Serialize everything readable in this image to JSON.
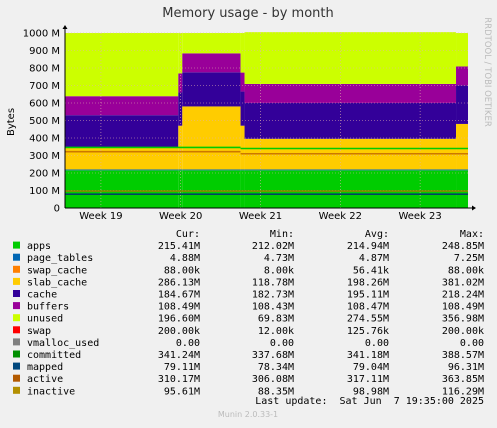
{
  "chart_data": {
    "type": "area",
    "title": "Memory usage - by month",
    "ylabel": "Bytes",
    "xlabel": "",
    "side_label": "RRDTOOL / TOBI OETIKER",
    "ylim": [
      0,
      1000000000
    ],
    "y_ticks": [
      {
        "label": "0",
        "value": 0
      },
      {
        "label": "100 M",
        "value": 100000000
      },
      {
        "label": "200 M",
        "value": 200000000
      },
      {
        "label": "300 M",
        "value": 300000000
      },
      {
        "label": "400 M",
        "value": 400000000
      },
      {
        "label": "500 M",
        "value": 500000000
      },
      {
        "label": "600 M",
        "value": 600000000
      },
      {
        "label": "700 M",
        "value": 700000000
      },
      {
        "label": "800 M",
        "value": 800000000
      },
      {
        "label": "900 M",
        "value": 900000000
      },
      {
        "label": "1000 M",
        "value": 1000000000
      }
    ],
    "x_ticks": [
      "Week 19",
      "Week 20",
      "Week 21",
      "Week 22",
      "Week 23"
    ],
    "x_range_weeks": [
      18.55,
      23.6
    ],
    "segments": [
      {
        "start": 18.55,
        "end": 19.97,
        "apps": 215.4,
        "page_tables": 4.9,
        "swap_cache": 0.05,
        "slab_cache": 125,
        "cache": 185,
        "buffers": 108.5,
        "unused": 361
      },
      {
        "start": 19.97,
        "end": 20.02,
        "apps": 215.4,
        "page_tables": 4.9,
        "swap_cache": 0.05,
        "slab_cache": 250,
        "cache": 190,
        "buffers": 108.5,
        "unused": 231
      },
      {
        "start": 20.02,
        "end": 20.75,
        "apps": 215.4,
        "page_tables": 4.9,
        "swap_cache": 0.05,
        "slab_cache": 360,
        "cache": 195,
        "buffers": 108.5,
        "unused": 116
      },
      {
        "start": 20.75,
        "end": 20.8,
        "apps": 215.4,
        "page_tables": 4.9,
        "swap_cache": 0.05,
        "slab_cache": 250,
        "cache": 195,
        "buffers": 108.5,
        "unused": 226
      },
      {
        "start": 20.8,
        "end": 23.45,
        "apps": 215.4,
        "page_tables": 4.9,
        "swap_cache": 0.05,
        "slab_cache": 175,
        "cache": 205,
        "buffers": 108.5,
        "unused": 296
      },
      {
        "start": 23.45,
        "end": 23.6,
        "apps": 215.4,
        "page_tables": 4.9,
        "swap_cache": 0.05,
        "slab_cache": 260,
        "cache": 220,
        "buffers": 108.5,
        "unused": 191
      }
    ],
    "lines": [
      {
        "name": "committed",
        "color": "#00CC00",
        "segments": [
          [
            18.55,
            20.75,
            346
          ],
          [
            20.75,
            23.6,
            340
          ]
        ]
      },
      {
        "name": "active",
        "color": "#CC7700",
        "segments": [
          [
            18.55,
            20.75,
            322
          ],
          [
            20.75,
            23.6,
            310
          ]
        ]
      },
      {
        "name": "mapped",
        "color": "#004466",
        "segments": [
          [
            18.55,
            23.6,
            79
          ]
        ]
      },
      {
        "name": "inactive",
        "color": "#888800",
        "segments": [
          [
            18.55,
            23.6,
            97
          ]
        ]
      }
    ],
    "legend_headers": {
      "cur": "Cur:",
      "min": "Min:",
      "avg": "Avg:",
      "max": "Max:"
    },
    "series": [
      {
        "name": "apps",
        "color": "#00CC00",
        "cur": "215.41M",
        "min": "212.02M",
        "avg": "214.94M",
        "max": "248.85M"
      },
      {
        "name": "page_tables",
        "color": "#0066B3",
        "cur": "4.88M",
        "min": "4.73M",
        "avg": "4.87M",
        "max": "7.25M"
      },
      {
        "name": "swap_cache",
        "color": "#FF8000",
        "cur": "88.00k",
        "min": "8.00k",
        "avg": "56.41k",
        "max": "88.00k"
      },
      {
        "name": "slab_cache",
        "color": "#FFCC00",
        "cur": "286.13M",
        "min": "118.78M",
        "avg": "198.26M",
        "max": "381.02M"
      },
      {
        "name": "cache",
        "color": "#330099",
        "cur": "184.67M",
        "min": "182.73M",
        "avg": "195.11M",
        "max": "218.24M"
      },
      {
        "name": "buffers",
        "color": "#990099",
        "cur": "108.49M",
        "min": "108.43M",
        "avg": "108.47M",
        "max": "108.49M"
      },
      {
        "name": "unused",
        "color": "#CCFF00",
        "cur": "196.60M",
        "min": "69.83M",
        "avg": "274.55M",
        "max": "356.98M"
      },
      {
        "name": "swap",
        "color": "#FF0000",
        "cur": "200.00k",
        "min": "12.00k",
        "avg": "125.76k",
        "max": "200.00k"
      },
      {
        "name": "vmalloc_used",
        "color": "#808080",
        "cur": "0.00",
        "min": "0.00",
        "avg": "0.00",
        "max": "0.00"
      },
      {
        "name": "committed",
        "color": "#008F00",
        "cur": "341.24M",
        "min": "337.68M",
        "avg": "341.18M",
        "max": "388.57M"
      },
      {
        "name": "mapped",
        "color": "#00487D",
        "cur": "79.11M",
        "min": "78.34M",
        "avg": "79.04M",
        "max": "96.31M"
      },
      {
        "name": "active",
        "color": "#B35A00",
        "cur": "310.17M",
        "min": "306.08M",
        "avg": "317.11M",
        "max": "363.85M"
      },
      {
        "name": "inactive",
        "color": "#B38F00",
        "cur": "95.61M",
        "min": "88.35M",
        "avg": "98.98M",
        "max": "116.29M"
      }
    ],
    "last_update": "Last update:  Sat Jun  7 19:35:00 2025",
    "footer": "Munin 2.0.33-1"
  }
}
